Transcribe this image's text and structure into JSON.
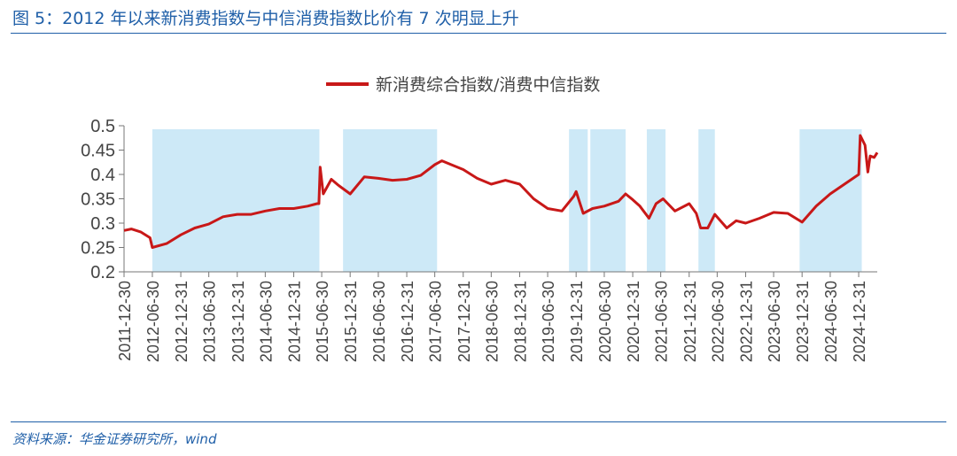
{
  "figure": {
    "title": "图 5：2012 年以来新消费指数与中信消费指数比价有 7 次明显上升",
    "source": "资料来源：华金证券研究所，wind"
  },
  "colors": {
    "line": "#c81818",
    "shade": "#cde9f7",
    "text_blue": "#1f5fa8",
    "axis": "#777777"
  },
  "chart_data": {
    "type": "line",
    "title": "",
    "xlabel": "",
    "ylabel": "",
    "ylim": [
      0.2,
      0.5
    ],
    "yticks": [
      "0.5",
      "0.45",
      "0.4",
      "0.35",
      "0.3",
      "0.25",
      "0.2"
    ],
    "xlim": [
      "2011-12-30",
      "2025-04-30"
    ],
    "xticks": [
      "2011-12-30",
      "2012-06-30",
      "2012-12-31",
      "2013-06-30",
      "2013-12-31",
      "2014-06-30",
      "2014-12-31",
      "2015-06-30",
      "2015-12-31",
      "2016-06-30",
      "2016-12-31",
      "2017-06-30",
      "2017-12-31",
      "2018-06-30",
      "2018-12-31",
      "2019-06-30",
      "2019-12-31",
      "2020-06-30",
      "2020-12-31",
      "2021-06-30",
      "2021-12-31",
      "2022-06-30",
      "2022-12-31",
      "2023-06-30",
      "2023-12-31",
      "2024-06-30",
      "2024-12-31"
    ],
    "legend": {
      "position": "top-center",
      "entries": [
        "新消费综合指数/消费中信指数"
      ]
    },
    "grid": false,
    "shaded_periods": [
      [
        "2012-06-30",
        "2015-06-15"
      ],
      [
        "2015-11-15",
        "2017-07-15"
      ],
      [
        "2019-11-15",
        "2020-03-15"
      ],
      [
        "2020-04-01",
        "2020-11-15"
      ],
      [
        "2021-04-01",
        "2021-07-31"
      ],
      [
        "2022-03-01",
        "2022-06-15"
      ],
      [
        "2023-12-15",
        "2025-01-20"
      ]
    ],
    "series": [
      {
        "name": "新消费综合指数/消费中信指数",
        "x": [
          "2011-12-30",
          "2012-02-15",
          "2012-04-15",
          "2012-06-15",
          "2012-06-30",
          "2012-09-30",
          "2012-12-31",
          "2013-03-31",
          "2013-06-30",
          "2013-09-30",
          "2013-12-31",
          "2014-03-31",
          "2014-06-30",
          "2014-09-30",
          "2014-12-31",
          "2015-03-31",
          "2015-05-31",
          "2015-06-12",
          "2015-06-20",
          "2015-07-10",
          "2015-08-31",
          "2015-10-15",
          "2015-12-31",
          "2016-03-31",
          "2016-06-30",
          "2016-09-30",
          "2016-12-31",
          "2017-03-31",
          "2017-06-30",
          "2017-08-15",
          "2017-10-15",
          "2017-12-31",
          "2018-03-31",
          "2018-06-30",
          "2018-09-30",
          "2018-12-31",
          "2019-03-31",
          "2019-06-30",
          "2019-09-30",
          "2019-12-15",
          "2019-12-31",
          "2020-02-15",
          "2020-04-15",
          "2020-06-30",
          "2020-09-30",
          "2020-11-15",
          "2020-12-31",
          "2021-02-15",
          "2021-04-15",
          "2021-05-31",
          "2021-07-15",
          "2021-09-30",
          "2021-12-31",
          "2022-02-15",
          "2022-03-15",
          "2022-04-30",
          "2022-06-15",
          "2022-08-31",
          "2022-10-31",
          "2022-12-31",
          "2023-03-31",
          "2023-06-30",
          "2023-09-30",
          "2023-12-31",
          "2024-03-31",
          "2024-06-30",
          "2024-09-30",
          "2024-12-31",
          "2025-01-10",
          "2025-02-10",
          "2025-02-28",
          "2025-03-15",
          "2025-04-10",
          "2025-04-30"
        ],
        "values": [
          0.285,
          0.288,
          0.282,
          0.27,
          0.25,
          0.258,
          0.276,
          0.29,
          0.298,
          0.313,
          0.318,
          0.318,
          0.325,
          0.33,
          0.33,
          0.335,
          0.34,
          0.34,
          0.415,
          0.36,
          0.39,
          0.378,
          0.36,
          0.395,
          0.392,
          0.388,
          0.39,
          0.398,
          0.42,
          0.428,
          0.42,
          0.41,
          0.392,
          0.38,
          0.388,
          0.38,
          0.35,
          0.33,
          0.325,
          0.355,
          0.365,
          0.32,
          0.33,
          0.335,
          0.345,
          0.36,
          0.348,
          0.335,
          0.31,
          0.34,
          0.35,
          0.325,
          0.34,
          0.32,
          0.29,
          0.29,
          0.318,
          0.29,
          0.305,
          0.3,
          0.31,
          0.322,
          0.32,
          0.302,
          0.335,
          0.36,
          0.38,
          0.4,
          0.48,
          0.46,
          0.405,
          0.438,
          0.435,
          0.445
        ]
      }
    ]
  }
}
